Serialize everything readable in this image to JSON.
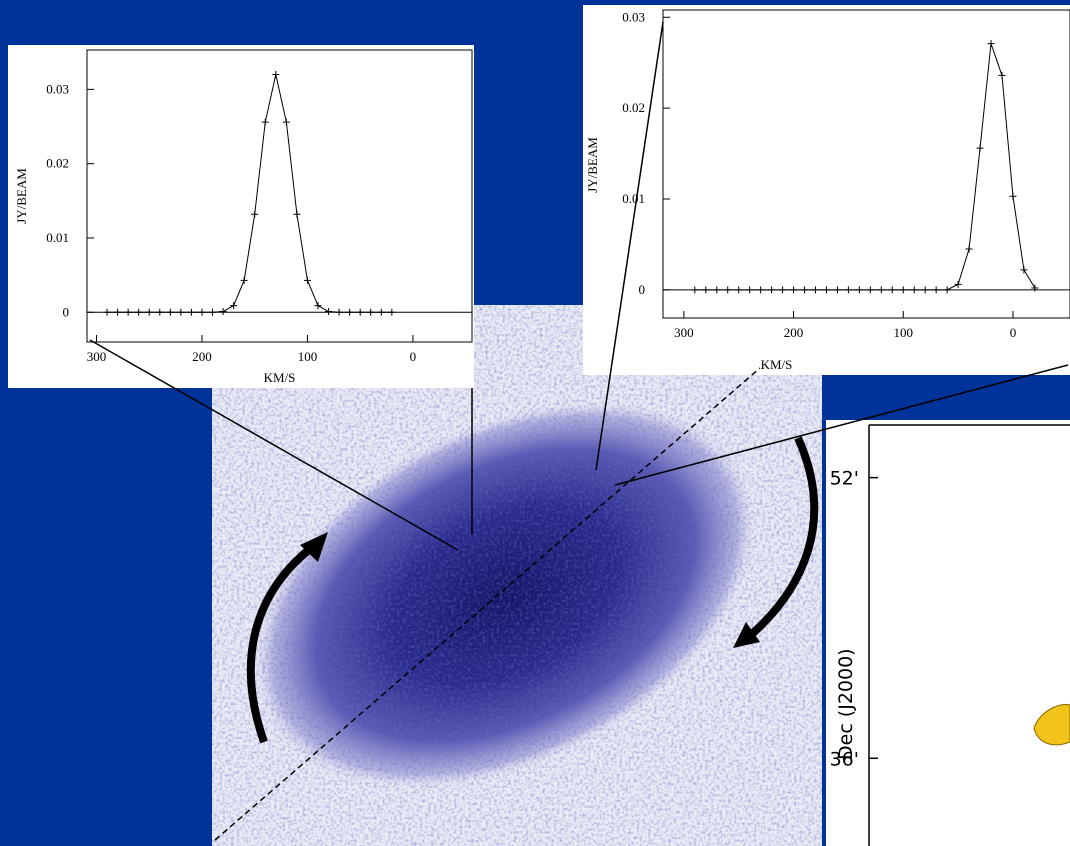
{
  "chart_data": [
    {
      "type": "spectrum",
      "xlabel": "KM/S",
      "ylabel": "JY/BEAM",
      "xlim": [
        309,
        -56
      ],
      "ylim": [
        -0.004,
        0.0353
      ],
      "xticks": [
        300,
        200,
        100,
        0
      ],
      "yticks": [
        0,
        0.01,
        0.02,
        0.03
      ],
      "series": [
        {
          "color": "#000000",
          "x": [
            290,
            280,
            270,
            260,
            250,
            240,
            230,
            220,
            210,
            200,
            190,
            180,
            170,
            160,
            150,
            140,
            130,
            120,
            110,
            100,
            90,
            80,
            70,
            60,
            50,
            40,
            30,
            20
          ],
          "values": [
            0,
            0,
            0,
            0,
            0,
            0,
            0,
            0,
            0,
            0,
            0,
            0.0001,
            0.0009,
            0.0043,
            0.0132,
            0.0256,
            0.032,
            0.0256,
            0.0132,
            0.0043,
            0.0009,
            0.0001,
            0,
            0,
            0,
            0,
            0,
            0
          ]
        }
      ]
    },
    {
      "type": "spectrum",
      "xlabel": "KM/S",
      "ylabel": "JY/BEAM",
      "xlim": [
        319,
        -52
      ],
      "ylim": [
        -0.0031,
        0.0308
      ],
      "xticks": [
        300,
        200,
        100,
        0
      ],
      "yticks": [
        0,
        0.01,
        0.02,
        0.03
      ],
      "series": [
        {
          "color": "#000000",
          "x": [
            290,
            280,
            270,
            260,
            250,
            240,
            230,
            220,
            210,
            200,
            190,
            180,
            170,
            160,
            150,
            140,
            130,
            120,
            110,
            100,
            90,
            80,
            70,
            60,
            50,
            40,
            30,
            20,
            10,
            0,
            -10,
            -20
          ],
          "values": [
            0,
            0,
            0,
            0,
            0,
            0,
            0,
            0,
            0,
            0,
            0,
            0,
            0,
            0,
            0,
            0,
            0,
            0,
            0,
            0,
            0,
            0,
            0,
            0,
            0.0006,
            0.0045,
            0.0156,
            0.0271,
            0.0236,
            0.0103,
            0.0022,
            0.0002
          ]
        }
      ]
    },
    {
      "type": "contour",
      "ylabel": "Dec (J2000)",
      "ylim": [
        31,
        55
      ],
      "yticks": [
        {
          "value": 52,
          "label": "52'"
        },
        {
          "value": 36,
          "label": "36'"
        }
      ]
    }
  ]
}
